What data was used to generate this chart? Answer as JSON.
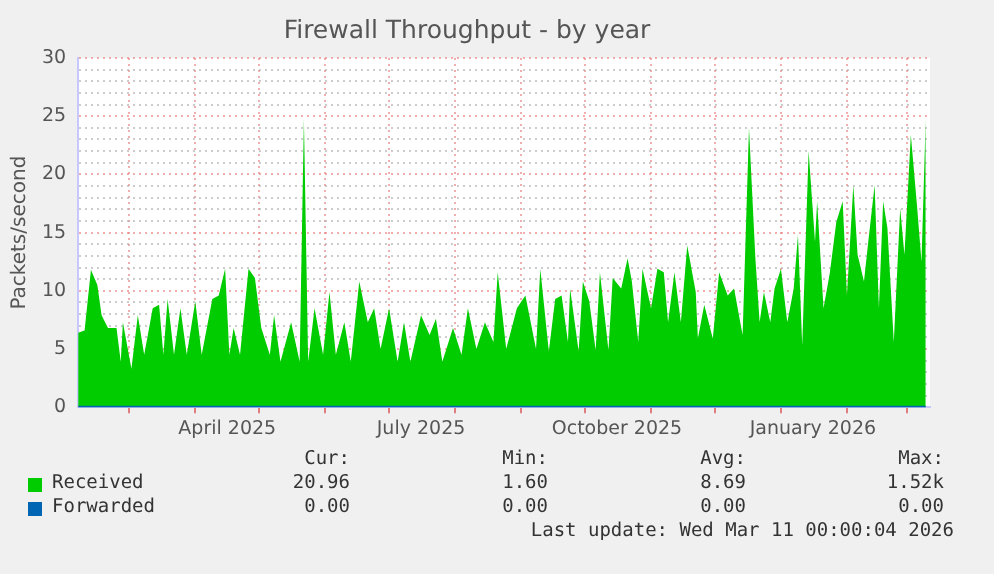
{
  "chart_data": {
    "type": "area",
    "title": "Firewall Throughput - by year",
    "ylabel": "Packets/second",
    "xlim": [
      "2025-02-05",
      "2026-03-12"
    ],
    "xticks": [
      {
        "value": "2025-03-01",
        "label": null
      },
      {
        "value": "2025-04-01",
        "label": null
      },
      {
        "value": "2025-04-16",
        "label": "April 2025"
      },
      {
        "value": "2025-05-01",
        "label": null
      },
      {
        "value": "2025-06-01",
        "label": null
      },
      {
        "value": "2025-07-01",
        "label": null
      },
      {
        "value": "2025-07-16",
        "label": "July 2025"
      },
      {
        "value": "2025-08-01",
        "label": null
      },
      {
        "value": "2025-09-01",
        "label": null
      },
      {
        "value": "2025-10-01",
        "label": null
      },
      {
        "value": "2025-10-16",
        "label": "October 2025"
      },
      {
        "value": "2025-11-01",
        "label": null
      },
      {
        "value": "2025-12-01",
        "label": null
      },
      {
        "value": "2026-01-01",
        "label": null
      },
      {
        "value": "2026-01-16",
        "label": "January 2026"
      },
      {
        "value": "2026-02-01",
        "label": null
      },
      {
        "value": "2026-03-01",
        "label": null
      }
    ],
    "ylim": [
      0,
      30
    ],
    "yticks": [
      0,
      {
        "value": 1,
        "label": null
      },
      {
        "value": 2,
        "label": null
      },
      {
        "value": 3,
        "label": null
      },
      {
        "value": 4,
        "label": null
      },
      5,
      {
        "value": 6,
        "label": null
      },
      {
        "value": 7,
        "label": null
      },
      {
        "value": 8,
        "label": null
      },
      {
        "value": 9,
        "label": null
      },
      10,
      {
        "value": 11,
        "label": null
      },
      {
        "value": 12,
        "label": null
      },
      {
        "value": 13,
        "label": null
      },
      {
        "value": 14,
        "label": null
      },
      15,
      {
        "value": 16,
        "label": null
      },
      {
        "value": 17,
        "label": null
      },
      {
        "value": 18,
        "label": null
      },
      {
        "value": 19,
        "label": null
      },
      20,
      {
        "value": 21,
        "label": null
      },
      {
        "value": 22,
        "label": null
      },
      {
        "value": 23,
        "label": null
      },
      {
        "value": 24,
        "label": null
      },
      25,
      {
        "value": 26,
        "label": null
      },
      {
        "value": 27,
        "label": null
      },
      {
        "value": 28,
        "label": null
      },
      {
        "value": 29,
        "label": null
      },
      30
    ],
    "grid": true,
    "legend": "bottom",
    "marker": "none",
    "series": [
      {
        "name": "Received",
        "type": "area",
        "color": "#00cc00",
        "x": [
          "2025-02-05",
          "2025-02-08",
          "2025-02-11",
          "2025-02-14",
          "2025-02-16",
          "2025-02-19",
          "2025-02-23",
          "2025-02-25",
          "2025-02-26",
          "2025-03-02",
          "2025-03-05",
          "2025-03-08",
          "2025-03-12",
          "2025-03-15",
          "2025-03-17",
          "2025-03-19",
          "2025-03-22",
          "2025-03-25",
          "2025-03-28",
          "2025-04-01",
          "2025-04-04",
          "2025-04-09",
          "2025-04-12",
          "2025-04-15",
          "2025-04-17",
          "2025-04-19",
          "2025-04-22",
          "2025-04-26",
          "2025-04-29",
          "2025-05-02",
          "2025-05-06",
          "2025-05-08",
          "2025-05-11",
          "2025-05-16",
          "2025-05-20",
          "2025-05-22",
          "2025-05-24",
          "2025-05-27",
          "2025-05-31",
          "2025-06-03",
          "2025-06-06",
          "2025-06-10",
          "2025-06-13",
          "2025-06-17",
          "2025-06-21",
          "2025-06-24",
          "2025-06-27",
          "2025-07-01",
          "2025-07-05",
          "2025-07-08",
          "2025-07-11",
          "2025-07-16",
          "2025-07-20",
          "2025-07-23",
          "2025-07-26",
          "2025-07-31",
          "2025-08-04",
          "2025-08-07",
          "2025-08-11",
          "2025-08-15",
          "2025-08-19",
          "2025-08-21",
          "2025-08-25",
          "2025-08-30",
          "2025-09-03",
          "2025-09-08",
          "2025-09-10",
          "2025-09-14",
          "2025-09-17",
          "2025-09-20",
          "2025-09-23",
          "2025-09-24",
          "2025-09-28",
          "2025-09-30",
          "2025-10-03",
          "2025-10-06",
          "2025-10-08",
          "2025-10-12",
          "2025-10-14",
          "2025-10-18",
          "2025-10-21",
          "2025-10-23",
          "2025-10-26",
          "2025-10-28",
          "2025-11-01",
          "2025-11-04",
          "2025-11-07",
          "2025-11-09",
          "2025-11-12",
          "2025-11-15",
          "2025-11-18",
          "2025-11-22",
          "2025-11-23",
          "2025-11-26",
          "2025-11-30",
          "2025-12-03",
          "2025-12-07",
          "2025-12-10",
          "2025-12-14",
          "2025-12-17",
          "2025-12-20",
          "2025-12-22",
          "2025-12-24",
          "2025-12-27",
          "2025-12-29",
          "2026-01-01",
          "2026-01-04",
          "2026-01-07",
          "2026-01-09",
          "2026-01-11",
          "2026-01-14",
          "2026-01-17",
          "2026-01-18",
          "2026-01-21",
          "2026-01-24",
          "2026-01-27",
          "2026-01-30",
          "2026-02-01",
          "2026-02-04",
          "2026-02-06",
          "2026-02-09",
          "2026-02-11",
          "2026-02-14",
          "2026-02-16",
          "2026-02-18",
          "2026-02-20",
          "2026-02-23",
          "2026-02-26",
          "2026-02-28",
          "2026-03-03",
          "2026-03-06",
          "2026-03-08",
          "2026-03-10"
        ],
        "values": [
          6.4,
          6.6,
          11.8,
          10.5,
          7.9,
          6.8,
          6.8,
          3.9,
          7.3,
          3.3,
          7.9,
          4.5,
          8.5,
          8.8,
          4.5,
          9.3,
          4.5,
          8.5,
          4.5,
          9.1,
          4.5,
          9.3,
          9.6,
          11.9,
          4.5,
          6.8,
          4.5,
          11.9,
          11.1,
          6.8,
          4.5,
          7.9,
          3.9,
          7.3,
          3.9,
          24.8,
          3.9,
          8.5,
          4.5,
          9.9,
          4.5,
          7.3,
          3.9,
          10.8,
          7.3,
          8.5,
          5.0,
          8.5,
          3.9,
          7.3,
          3.9,
          7.9,
          6.2,
          7.6,
          3.9,
          6.8,
          4.5,
          8.5,
          5.0,
          7.3,
          5.6,
          11.6,
          5.0,
          8.5,
          9.6,
          5.0,
          11.9,
          4.8,
          9.3,
          9.6,
          5.6,
          10.2,
          4.8,
          10.8,
          9.1,
          4.9,
          11.6,
          4.9,
          11.1,
          10.2,
          12.8,
          10.8,
          5.6,
          11.9,
          8.5,
          11.9,
          11.6,
          7.3,
          11.6,
          7.3,
          13.9,
          9.9,
          5.9,
          8.8,
          5.9,
          11.6,
          9.6,
          10.2,
          6.2,
          24.0,
          12.8,
          7.3,
          9.9,
          7.3,
          10.2,
          11.9,
          7.3,
          10.2,
          14.8,
          5.3,
          22.0,
          14.2,
          17.7,
          8.5,
          11.6,
          15.9,
          17.7,
          9.6,
          19.1,
          13.1,
          10.8,
          14.2,
          19.1,
          8.5,
          17.7,
          15.4,
          5.6,
          17.1,
          13.1,
          23.4,
          17.1,
          12.5,
          24.8
        ]
      },
      {
        "name": "Forwarded",
        "type": "line",
        "color": "#0066b3",
        "x": [
          "2025-02-05",
          "2026-03-10"
        ],
        "values": [
          0,
          0
        ]
      }
    ],
    "annotations": [
      "Cur:",
      "Min:",
      "Avg:",
      "Max:",
      "20.96",
      "1.60",
      "8.69",
      "1.52k",
      "0.00",
      "0.00",
      "0.00",
      "0.00",
      "Last update: Wed Mar 11 00:00:04 2026"
    ]
  }
}
